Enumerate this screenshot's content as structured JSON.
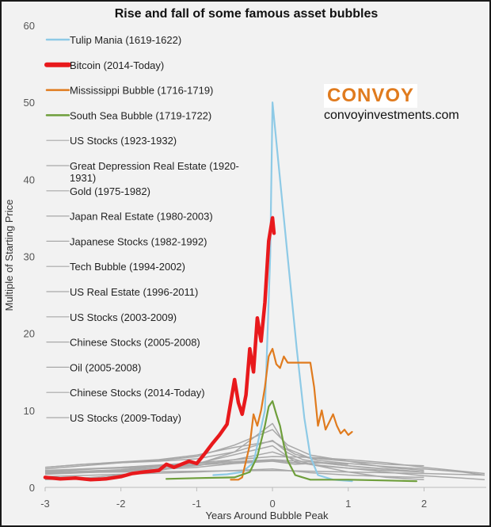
{
  "brand": {
    "logo_text": "CONVOY",
    "url": "convoyinvestments.com"
  },
  "chart_data": {
    "type": "line",
    "title": "Rise and fall of some famous asset bubbles",
    "xlabel": "Years Around Bubble Peak",
    "ylabel": "Multiple of Starting Price",
    "xlim": [
      -3,
      2.8
    ],
    "ylim": [
      0,
      60
    ],
    "xticks": [
      -3,
      -2,
      -1,
      0,
      1,
      2
    ],
    "yticks": [
      0,
      10,
      20,
      30,
      40,
      50,
      60
    ],
    "grid": false,
    "legend_position": "top-left",
    "colors": {
      "tulip": "#8ecae6",
      "bitcoin": "#e8191c",
      "mississippi": "#e07b1e",
      "southsea": "#6e9e3b",
      "other": "#a8a8a8"
    },
    "series": [
      {
        "name": "Tulip Mania (1619-1622)",
        "color": "#8ecae6",
        "width": 2.2,
        "points": [
          [
            -0.78,
            1.6
          ],
          [
            -0.6,
            1.7
          ],
          [
            -0.4,
            2.0
          ],
          [
            -0.25,
            3.2
          ],
          [
            -0.1,
            10
          ],
          [
            -0.03,
            30
          ],
          [
            0,
            50
          ],
          [
            0.08,
            42
          ],
          [
            0.2,
            30
          ],
          [
            0.32,
            18
          ],
          [
            0.42,
            9
          ],
          [
            0.5,
            4
          ],
          [
            0.6,
            1.6
          ],
          [
            0.8,
            1.0
          ],
          [
            1.05,
            0.8
          ]
        ]
      },
      {
        "name": "Bitcoin (2014-Today)",
        "color": "#e8191c",
        "width": 4.5,
        "points": [
          [
            -3,
            1.3
          ],
          [
            -2.8,
            1.1
          ],
          [
            -2.6,
            1.2
          ],
          [
            -2.4,
            1.0
          ],
          [
            -2.2,
            1.1
          ],
          [
            -2.0,
            1.4
          ],
          [
            -1.85,
            1.8
          ],
          [
            -1.7,
            2.0
          ],
          [
            -1.5,
            2.2
          ],
          [
            -1.4,
            3.0
          ],
          [
            -1.3,
            2.6
          ],
          [
            -1.1,
            3.4
          ],
          [
            -1.0,
            3.1
          ],
          [
            -0.9,
            4.3
          ],
          [
            -0.8,
            5.6
          ],
          [
            -0.7,
            6.8
          ],
          [
            -0.6,
            8.2
          ],
          [
            -0.5,
            14
          ],
          [
            -0.45,
            11
          ],
          [
            -0.4,
            9.5
          ],
          [
            -0.35,
            12
          ],
          [
            -0.3,
            18
          ],
          [
            -0.25,
            15
          ],
          [
            -0.2,
            22
          ],
          [
            -0.15,
            19
          ],
          [
            -0.1,
            24
          ],
          [
            -0.05,
            32
          ],
          [
            0,
            35
          ],
          [
            0.02,
            33
          ]
        ]
      },
      {
        "name": "Mississippi Bubble (1716-1719)",
        "color": "#e07b1e",
        "width": 2.2,
        "points": [
          [
            -0.55,
            1.0
          ],
          [
            -0.45,
            1.0
          ],
          [
            -0.4,
            1.3
          ],
          [
            -0.3,
            5.5
          ],
          [
            -0.25,
            9.5
          ],
          [
            -0.2,
            8.0
          ],
          [
            -0.15,
            10
          ],
          [
            -0.1,
            13
          ],
          [
            -0.05,
            17
          ],
          [
            0,
            18
          ],
          [
            0.05,
            16
          ],
          [
            0.1,
            15.5
          ],
          [
            0.15,
            17
          ],
          [
            0.2,
            16.2
          ],
          [
            0.3,
            16.2
          ],
          [
            0.4,
            16.2
          ],
          [
            0.5,
            16.2
          ],
          [
            0.55,
            13
          ],
          [
            0.6,
            8
          ],
          [
            0.65,
            10
          ],
          [
            0.7,
            7.5
          ],
          [
            0.8,
            9.5
          ],
          [
            0.85,
            8
          ],
          [
            0.9,
            7
          ],
          [
            0.95,
            7.5
          ],
          [
            1.0,
            6.8
          ],
          [
            1.05,
            7.2
          ]
        ]
      },
      {
        "name": "South Sea Bubble (1719-1722)",
        "color": "#6e9e3b",
        "width": 2.2,
        "points": [
          [
            -1.4,
            1.1
          ],
          [
            -1.0,
            1.2
          ],
          [
            -0.5,
            1.3
          ],
          [
            -0.3,
            2.0
          ],
          [
            -0.2,
            4.0
          ],
          [
            -0.1,
            8.0
          ],
          [
            -0.05,
            10.5
          ],
          [
            0,
            11.2
          ],
          [
            0.05,
            9.5
          ],
          [
            0.1,
            8.0
          ],
          [
            0.15,
            5.5
          ],
          [
            0.2,
            3.5
          ],
          [
            0.3,
            1.6
          ],
          [
            0.5,
            1.0
          ],
          [
            1.0,
            1.0
          ],
          [
            1.5,
            0.9
          ],
          [
            1.9,
            0.8
          ]
        ]
      },
      {
        "name": "US Stocks (1923-1932)",
        "color": "#a8a8a8",
        "width": 1.5,
        "points": [
          [
            -3,
            1.8
          ],
          [
            -2,
            2.2
          ],
          [
            -1,
            2.8
          ],
          [
            -0.5,
            3.6
          ],
          [
            0,
            4.6
          ],
          [
            0.5,
            3.0
          ],
          [
            1,
            2.0
          ],
          [
            1.5,
            1.3
          ],
          [
            2,
            1.0
          ]
        ]
      },
      {
        "name": "Great Depression Real Estate (1920-1931)",
        "color": "#a8a8a8",
        "width": 1.5,
        "points": [
          [
            -3,
            2.2
          ],
          [
            -2,
            2.6
          ],
          [
            -1,
            3.1
          ],
          [
            0,
            3.6
          ],
          [
            0.5,
            3.3
          ],
          [
            1,
            2.8
          ],
          [
            1.5,
            2.4
          ],
          [
            2,
            2.0
          ]
        ]
      },
      {
        "name": "Gold (1975-1982)",
        "color": "#a8a8a8",
        "width": 1.5,
        "points": [
          [
            -3,
            1.0
          ],
          [
            -2.5,
            1.2
          ],
          [
            -2,
            1.6
          ],
          [
            -1.5,
            2.2
          ],
          [
            -1,
            3.0
          ],
          [
            -0.5,
            4.6
          ],
          [
            0,
            8.3
          ],
          [
            0.2,
            5.0
          ],
          [
            0.5,
            3.8
          ],
          [
            1,
            3.4
          ],
          [
            1.5,
            3.0
          ],
          [
            2,
            2.8
          ]
        ]
      },
      {
        "name": "Japan Real Estate (1980-2003)",
        "color": "#a8a8a8",
        "width": 1.5,
        "points": [
          [
            -3,
            2.0
          ],
          [
            -2,
            2.6
          ],
          [
            -1,
            3.2
          ],
          [
            0,
            4.0
          ],
          [
            0.5,
            3.9
          ],
          [
            1,
            3.6
          ],
          [
            1.5,
            3.2
          ],
          [
            2,
            2.6
          ],
          [
            2.5,
            2.1
          ],
          [
            2.8,
            1.8
          ]
        ]
      },
      {
        "name": "Japanese Stocks (1982-1992)",
        "color": "#a8a8a8",
        "width": 1.5,
        "points": [
          [
            -3,
            2.6
          ],
          [
            -2.5,
            3.0
          ],
          [
            -2,
            3.3
          ],
          [
            -1.5,
            3.6
          ],
          [
            -1,
            4.2
          ],
          [
            -0.5,
            5.2
          ],
          [
            0,
            6.0
          ],
          [
            0.3,
            4.3
          ],
          [
            0.6,
            3.5
          ],
          [
            1,
            3.1
          ],
          [
            1.5,
            2.7
          ],
          [
            2,
            2.4
          ],
          [
            2.5,
            2.0
          ],
          [
            2.8,
            1.6
          ]
        ]
      },
      {
        "name": "Tech Bubble (1994-2002)",
        "color": "#a8a8a8",
        "width": 1.5,
        "points": [
          [
            -3,
            2.4
          ],
          [
            -2.5,
            2.8
          ],
          [
            -2,
            3.2
          ],
          [
            -1.5,
            3.5
          ],
          [
            -1,
            4.0
          ],
          [
            -0.5,
            5.5
          ],
          [
            0,
            7.5
          ],
          [
            0.2,
            5.5
          ],
          [
            0.5,
            4.2
          ],
          [
            1,
            3.4
          ],
          [
            1.5,
            2.6
          ],
          [
            2,
            2.2
          ]
        ]
      },
      {
        "name": "US Real Estate (1996-2011)",
        "color": "#a8a8a8",
        "width": 1.5,
        "points": [
          [
            -3,
            1.9
          ],
          [
            -2,
            2.0
          ],
          [
            -1,
            2.1
          ],
          [
            0,
            2.2
          ],
          [
            0.5,
            2.1
          ],
          [
            1,
            2.0
          ],
          [
            1.5,
            1.9
          ],
          [
            2,
            1.8
          ],
          [
            2.8,
            1.6
          ]
        ]
      },
      {
        "name": "US Stocks (2003-2009)",
        "color": "#a8a8a8",
        "width": 1.5,
        "points": [
          [
            -3,
            1.4
          ],
          [
            -2,
            1.7
          ],
          [
            -1,
            2.0
          ],
          [
            0,
            2.4
          ],
          [
            0.5,
            1.9
          ],
          [
            1,
            1.6
          ],
          [
            1.5,
            1.4
          ],
          [
            2,
            1.3
          ]
        ]
      },
      {
        "name": "Chinese Stocks (2005-2008)",
        "color": "#a8a8a8",
        "width": 1.5,
        "points": [
          [
            -3,
            2.6
          ],
          [
            -2.5,
            3.0
          ],
          [
            -2,
            3.2
          ],
          [
            -1.5,
            3.4
          ],
          [
            -1,
            3.7
          ],
          [
            -0.5,
            4.6
          ],
          [
            0,
            6.1
          ],
          [
            0.2,
            4.5
          ],
          [
            0.4,
            3.6
          ],
          [
            0.8,
            3.0
          ],
          [
            1.2,
            2.6
          ],
          [
            1.6,
            2.3
          ],
          [
            2,
            2.0
          ]
        ]
      },
      {
        "name": "Oil (2005-2008)",
        "color": "#a8a8a8",
        "width": 1.5,
        "points": [
          [
            -3,
            1.9
          ],
          [
            -2,
            2.3
          ],
          [
            -1,
            3.1
          ],
          [
            0,
            5.4
          ],
          [
            0.3,
            3.3
          ],
          [
            0.6,
            2.8
          ],
          [
            1,
            2.5
          ],
          [
            1.5,
            2.2
          ],
          [
            2,
            2.0
          ]
        ]
      },
      {
        "name": "Chinese Stocks (2014-Today)",
        "color": "#a8a8a8",
        "width": 1.5,
        "points": [
          [
            -3,
            2.1
          ],
          [
            -2.5,
            2.4
          ],
          [
            -2,
            2.5
          ],
          [
            -1.5,
            2.7
          ],
          [
            -1,
            2.9
          ],
          [
            -0.5,
            3.2
          ],
          [
            0,
            3.5
          ],
          [
            0.5,
            3.0
          ],
          [
            1,
            2.5
          ],
          [
            1.5,
            2.0
          ],
          [
            2,
            1.5
          ],
          [
            2.5,
            1.2
          ],
          [
            2.8,
            1.0
          ]
        ]
      },
      {
        "name": "US Stocks (2009-Today)",
        "color": "#a8a8a8",
        "width": 1.5,
        "points": [
          [
            -3,
            1.7
          ],
          [
            -2,
            2.1
          ],
          [
            -1,
            2.6
          ],
          [
            -0.5,
            3.1
          ],
          [
            0,
            3.4
          ],
          [
            0.3,
            3.0
          ],
          [
            0.7,
            3.2
          ],
          [
            1,
            3.0
          ]
        ]
      }
    ]
  }
}
